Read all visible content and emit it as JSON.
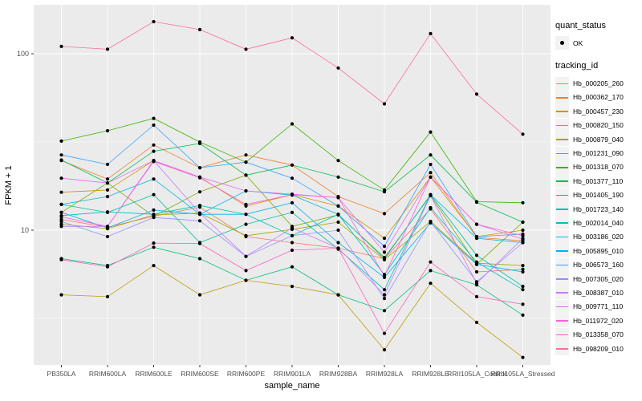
{
  "figure": {
    "y_axis_title": "FPKM + 1",
    "x_axis_title": "sample_name"
  },
  "legend": {
    "quant_status_title": "quant_status",
    "quant_status_items": [
      {
        "label": "OK",
        "symbol": "point"
      }
    ],
    "tracking_id_title": "tracking_id"
  },
  "chart_data": {
    "type": "line",
    "title": "",
    "xlabel": "sample_name",
    "ylabel": "FPKM + 1",
    "y_scale": "log10",
    "y_ticks": [
      100,
      10
    ],
    "y_minor_ticks": [
      31.623,
      3.162
    ],
    "ylim": [
      1.7,
      190
    ],
    "grid": true,
    "legend_position": "right",
    "panel_bg": "#EBEBEB",
    "grid_color": "#FFFFFF",
    "point_color": "#000000",
    "tick_label_color": "#4D4D4D",
    "categories": [
      "PB350LA",
      "RRIM600LA",
      "RRIM600LE",
      "RRIM600SE",
      "RRIM600PE",
      "RRIM901LA",
      "RRIM928BA",
      "RRIM928LA",
      "RRIM928LE",
      "RRII105LA_Control",
      "RRII105LA_Stressed"
    ],
    "series": [
      {
        "name": "Hb_000205_260",
        "color": "#F8766D",
        "values": [
          11.5,
          10.4,
          12.0,
          13.5,
          9.2,
          8.5,
          7.9,
          6.9,
          13.2,
          5.8,
          6.0
        ]
      },
      {
        "name": "Hb_000362_170",
        "color": "#EA8331",
        "values": [
          24.8,
          19.5,
          30.4,
          22.6,
          26.7,
          23.4,
          15.5,
          12.4,
          21.2,
          9.1,
          8.7
        ]
      },
      {
        "name": "Hb_000457_230",
        "color": "#D89000",
        "values": [
          16.4,
          16.9,
          24.8,
          20.0,
          13.7,
          15.9,
          13.7,
          9.0,
          20.0,
          9.2,
          10.0
        ]
      },
      {
        "name": "Hb_000820_150",
        "color": "#C09B00",
        "values": [
          4.3,
          4.2,
          6.3,
          4.3,
          5.2,
          4.8,
          4.3,
          2.1,
          5.0,
          3.0,
          1.9
        ]
      },
      {
        "name": "Hb_000879_040",
        "color": "#A3A500",
        "values": [
          10.8,
          10.2,
          12.2,
          12.5,
          9.3,
          10.1,
          11.1,
          6.8,
          11.2,
          6.5,
          6.3
        ]
      },
      {
        "name": "Hb_001231_090",
        "color": "#7CAE00",
        "values": [
          12.6,
          18.5,
          12.0,
          16.5,
          20.5,
          10.5,
          12.2,
          7.0,
          15.7,
          6.4,
          11.1
        ]
      },
      {
        "name": "Hb_001318_070",
        "color": "#39B600",
        "values": [
          32.0,
          36.6,
          43.0,
          31.6,
          24.3,
          40.0,
          24.8,
          16.9,
          36.0,
          14.5,
          14.3
        ]
      },
      {
        "name": "Hb_001377_110",
        "color": "#00BB4E",
        "values": [
          25.0,
          18.5,
          28.0,
          31.0,
          20.5,
          23.4,
          20.0,
          16.5,
          26.7,
          14.4,
          11.1
        ]
      },
      {
        "name": "Hb_001405_190",
        "color": "#00BF7D",
        "values": [
          6.9,
          6.3,
          8.0,
          6.9,
          5.2,
          6.2,
          4.3,
          3.5,
          5.9,
          4.9,
          3.3
        ]
      },
      {
        "name": "Hb_001723_140",
        "color": "#00C1A3",
        "values": [
          14.0,
          12.6,
          15.9,
          8.5,
          10.8,
          12.6,
          7.8,
          4.6,
          15.9,
          7.2,
          4.8
        ]
      },
      {
        "name": "Hb_002014_040",
        "color": "#00BFC4",
        "values": [
          12.1,
          12.7,
          12.3,
          13.8,
          12.3,
          9.3,
          12.3,
          5.6,
          13.4,
          6.6,
          4.6
        ]
      },
      {
        "name": "Hb_003186_020",
        "color": "#00BAE0",
        "values": [
          14.0,
          15.5,
          19.5,
          12.3,
          16.7,
          15.8,
          12.3,
          6.9,
          15.9,
          9.0,
          8.5
        ]
      },
      {
        "name": "Hb_005895_010",
        "color": "#00B0F6",
        "values": [
          12.6,
          10.3,
          13.0,
          12.3,
          12.3,
          14.3,
          8.5,
          5.4,
          11.0,
          6.4,
          5.8
        ]
      },
      {
        "name": "Hb_006573_160",
        "color": "#35A2FF",
        "values": [
          26.7,
          23.6,
          39.4,
          22.6,
          24.3,
          19.7,
          13.7,
          8.1,
          23.6,
          9.2,
          9.5
        ]
      },
      {
        "name": "Hb_007305_020",
        "color": "#9590FF",
        "values": [
          11.2,
          9.2,
          11.8,
          11.3,
          7.1,
          9.3,
          10.0,
          4.1,
          11.2,
          5.1,
          8.5
        ]
      },
      {
        "name": "Hb_008387_010",
        "color": "#C77CFF",
        "values": [
          10.5,
          10.5,
          24.8,
          12.5,
          7.1,
          10.3,
          7.9,
          4.3,
          15.7,
          5.0,
          9.0
        ]
      },
      {
        "name": "Hb_009771_110",
        "color": "#E76BF3",
        "values": [
          19.7,
          18.5,
          24.8,
          20.0,
          16.7,
          16.0,
          15.3,
          7.5,
          20.0,
          10.8,
          8.9
        ]
      },
      {
        "name": "Hb_011972_020",
        "color": "#FA62DB",
        "values": [
          11.9,
          10.5,
          24.5,
          19.8,
          14.0,
          15.9,
          15.3,
          5.5,
          20.0,
          10.8,
          9.3
        ]
      },
      {
        "name": "Hb_013358_070",
        "color": "#FF62BC",
        "values": [
          6.8,
          6.2,
          8.45,
          8.4,
          5.9,
          7.7,
          7.9,
          2.6,
          6.6,
          4.2,
          3.8
        ]
      },
      {
        "name": "Hb_098209_010",
        "color": "#FF6A98",
        "values": [
          110,
          106,
          152,
          137,
          106,
          123,
          83,
          52,
          130,
          59,
          35
        ]
      }
    ]
  }
}
